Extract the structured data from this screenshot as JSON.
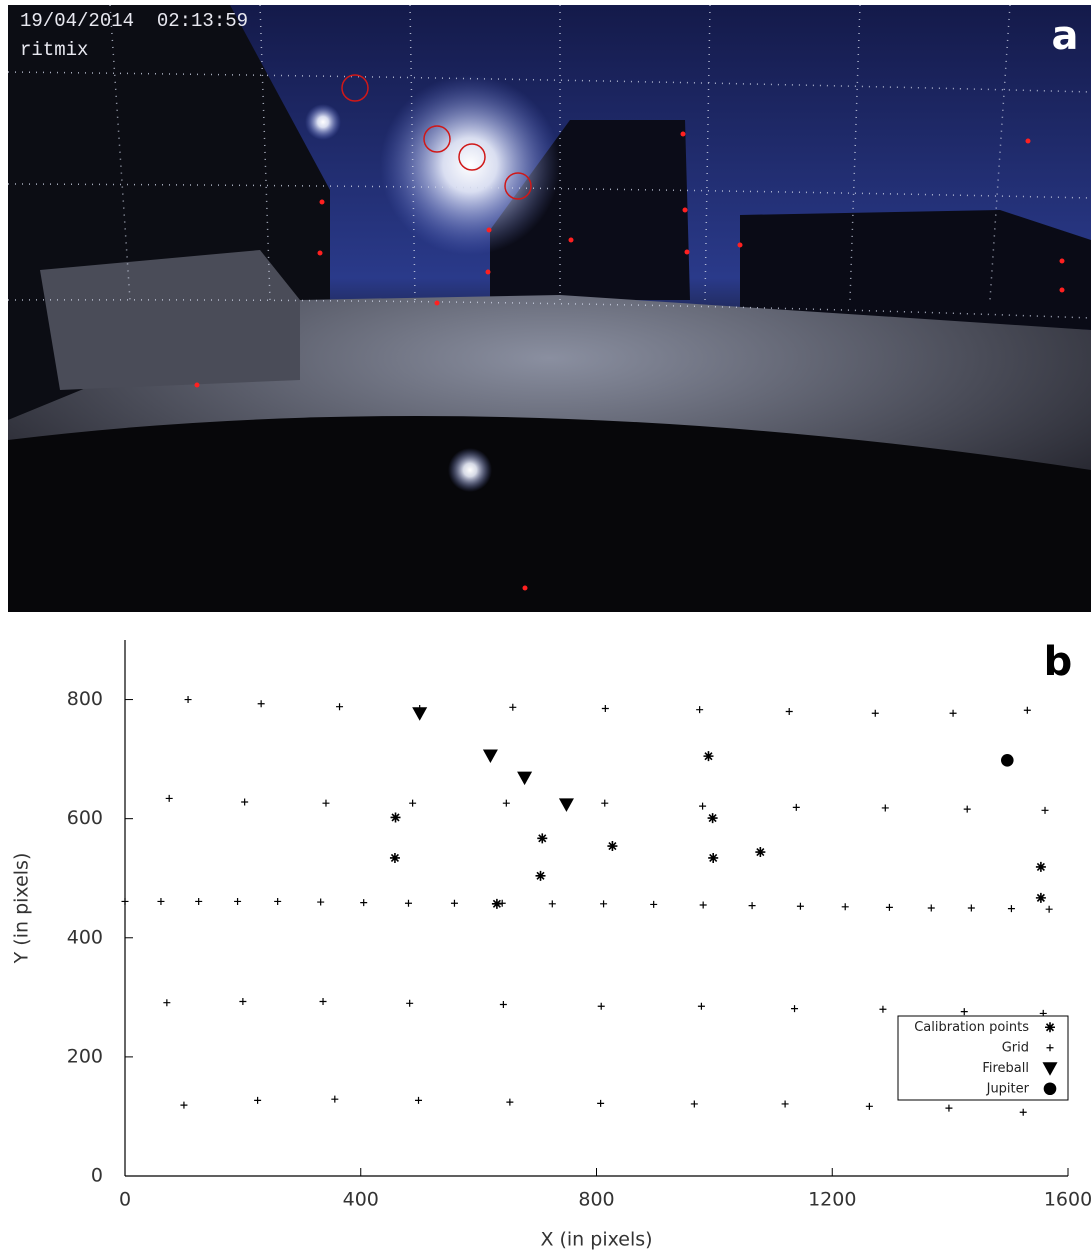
{
  "photo": {
    "timestamp": "19/04/2014  02:13:59",
    "camera": "ritmix",
    "label": "a"
  },
  "chart_data": {
    "type": "scatter",
    "panel_label": "b",
    "x_label": "X (in pixels)",
    "y_label": "Y (in pixels)",
    "xlim": [
      0,
      1600
    ],
    "xticks": [
      0,
      400,
      800,
      1200,
      1600
    ],
    "ylim": [
      0,
      900
    ],
    "yticks": [
      0,
      200,
      400,
      600,
      800
    ],
    "legend": "lower right",
    "series": [
      {
        "name": "Calibration points",
        "marker": "asterisk",
        "color": "#000000",
        "x": [
          459,
          458,
          708,
          705,
          827,
          990,
          997,
          998,
          1078,
          1554,
          1554,
          631
        ],
        "values": [
          602,
          534,
          567,
          504,
          554,
          705,
          601,
          534,
          544,
          519,
          467,
          457
        ]
      },
      {
        "name": "Grid",
        "marker": "plus",
        "color": "#000000",
        "x": [
          107,
          231,
          364,
          500,
          658,
          815,
          975,
          1127,
          1273,
          1405,
          1531,
          75,
          203,
          341,
          488,
          647,
          814,
          980,
          1139,
          1290,
          1429,
          1561,
          0,
          61,
          125,
          191,
          259,
          332,
          405,
          481,
          559,
          640,
          725,
          812,
          897,
          981,
          1064,
          1146,
          1222,
          1297,
          1368,
          1436,
          1504,
          1568,
          71,
          200,
          336,
          483,
          642,
          808,
          978,
          1136,
          1286,
          1424,
          1558,
          100,
          225,
          356,
          498,
          653,
          807,
          966,
          1120,
          1263,
          1398,
          1524
        ],
        "values": [
          800,
          793,
          788,
          785,
          787,
          785,
          783,
          780,
          777,
          777,
          782,
          634,
          628,
          626,
          626,
          626,
          626,
          621,
          619,
          618,
          616,
          614,
          461,
          461,
          461,
          461,
          461,
          460,
          459,
          458,
          458,
          458,
          457,
          457,
          456,
          455,
          454,
          453,
          452,
          451,
          450,
          450,
          449,
          448,
          291,
          293,
          293,
          290,
          288,
          285,
          285,
          281,
          280,
          276,
          273,
          119,
          127,
          129,
          127,
          124,
          122,
          121,
          121,
          117,
          114,
          107
        ]
      },
      {
        "name": "Fireball",
        "marker": "triangle-down",
        "color": "#000000",
        "x": [
          500,
          620,
          678,
          749
        ],
        "values": [
          777,
          706,
          669,
          624
        ]
      },
      {
        "name": "Jupiter",
        "marker": "circle",
        "color": "#000000",
        "x": [
          1497
        ],
        "values": [
          698
        ]
      }
    ]
  }
}
